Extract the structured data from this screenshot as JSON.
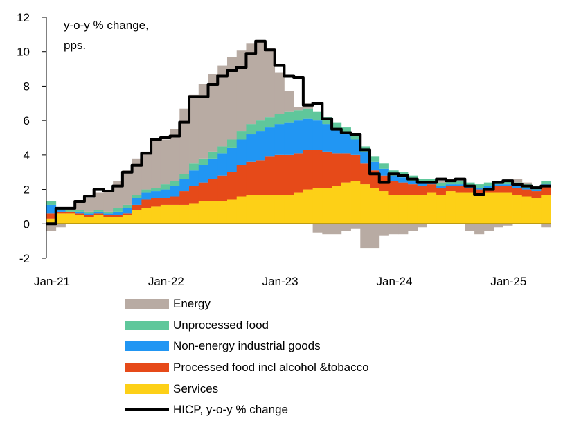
{
  "chart_data": {
    "type": "bar",
    "stacked": true,
    "title": "",
    "annotation": [
      "y-o-y % change,",
      "pps."
    ],
    "ylim": [
      -2,
      12
    ],
    "yticks": [
      -2,
      0,
      2,
      4,
      6,
      8,
      10,
      12
    ],
    "x_tick_labels": [
      {
        "index": 0,
        "label": "Jan-21"
      },
      {
        "index": 12,
        "label": "Jan-22"
      },
      {
        "index": 24,
        "label": "Jan-23"
      },
      {
        "index": 36,
        "label": "Jan-24"
      },
      {
        "index": 48,
        "label": "Jan-25"
      }
    ],
    "n_periods": 53,
    "colors": {
      "services": "#fdd017",
      "processed_food": "#e64a19",
      "neig": "#2196f3",
      "unprocessed_food": "#5fc79b",
      "energy": "#b8aba3",
      "hicp": "#000000"
    },
    "series": [
      {
        "key": "services",
        "name": "Services",
        "values": [
          0.3,
          0.6,
          0.6,
          0.5,
          0.4,
          0.5,
          0.4,
          0.4,
          0.5,
          0.8,
          0.9,
          1.0,
          1.1,
          1.1,
          1.1,
          1.2,
          1.3,
          1.3,
          1.3,
          1.4,
          1.6,
          1.7,
          1.7,
          1.7,
          1.7,
          1.7,
          1.8,
          2.0,
          2.1,
          2.1,
          2.2,
          2.4,
          2.5,
          2.3,
          2.1,
          1.9,
          1.7,
          1.7,
          1.7,
          1.7,
          1.8,
          1.7,
          1.9,
          1.8,
          1.8,
          1.7,
          1.8,
          1.8,
          1.8,
          1.7,
          1.6,
          1.5,
          1.7
        ]
      },
      {
        "key": "processed_food",
        "name": "Processed food incl alcohol &tobacco",
        "values": [
          0.3,
          0.1,
          0.1,
          0.1,
          0.1,
          0.1,
          0.1,
          0.1,
          0.1,
          0.3,
          0.5,
          0.5,
          0.4,
          0.5,
          0.8,
          1.0,
          1.1,
          1.3,
          1.5,
          1.6,
          1.8,
          1.9,
          2.0,
          2.2,
          2.3,
          2.3,
          2.3,
          2.3,
          2.2,
          2.1,
          1.9,
          1.7,
          1.5,
          1.2,
          1.0,
          0.9,
          0.8,
          0.7,
          0.6,
          0.5,
          0.5,
          0.4,
          0.3,
          0.4,
          0.3,
          0.3,
          0.3,
          0.4,
          0.4,
          0.4,
          0.4,
          0.4,
          0.5
        ]
      },
      {
        "key": "neig",
        "name": "Non-energy industrial goods",
        "values": [
          0.5,
          0.1,
          0.0,
          0.1,
          0.1,
          0.1,
          0.1,
          0.2,
          0.3,
          0.4,
          0.4,
          0.4,
          0.5,
          0.6,
          0.7,
          0.9,
          1.0,
          1.2,
          1.3,
          1.4,
          1.5,
          1.6,
          1.7,
          1.7,
          1.8,
          1.9,
          1.9,
          1.8,
          1.7,
          1.6,
          1.4,
          1.1,
          0.9,
          0.7,
          0.5,
          0.4,
          0.3,
          0.3,
          0.2,
          0.2,
          0.1,
          0.1,
          0.1,
          0.1,
          0.1,
          0.1,
          0.1,
          0.1,
          0.1,
          0.1,
          0.1,
          0.1,
          0.1
        ]
      },
      {
        "key": "unprocessed_food",
        "name": "Unprocessed food",
        "values": [
          0.2,
          0.1,
          0.1,
          0.1,
          0.1,
          0.1,
          0.1,
          0.2,
          0.2,
          0.2,
          0.2,
          0.2,
          0.3,
          0.3,
          0.3,
          0.4,
          0.4,
          0.4,
          0.4,
          0.5,
          0.5,
          0.6,
          0.6,
          0.6,
          0.6,
          0.6,
          0.6,
          0.6,
          0.5,
          0.4,
          0.4,
          0.4,
          0.3,
          0.3,
          0.3,
          0.3,
          0.3,
          0.3,
          0.3,
          0.2,
          0.2,
          0.2,
          0.2,
          0.2,
          0.2,
          0.2,
          0.2,
          0.2,
          0.2,
          0.2,
          0.2,
          0.2,
          0.2
        ]
      },
      {
        "key": "energy",
        "name": "Energy",
        "values": [
          -0.4,
          -0.2,
          0.1,
          0.5,
          0.8,
          1.0,
          1.2,
          1.6,
          2.0,
          2.1,
          2.2,
          2.7,
          2.6,
          3.0,
          3.8,
          4.0,
          4.3,
          4.5,
          4.7,
          4.8,
          4.7,
          4.7,
          4.6,
          4.0,
          2.4,
          1.2,
          0.2,
          0.3,
          -0.5,
          -0.6,
          -0.6,
          -0.4,
          -0.3,
          -1.4,
          -1.4,
          -0.7,
          -0.6,
          -0.6,
          -0.4,
          -0.2,
          0.0,
          0.1,
          0.1,
          0.0,
          -0.4,
          -0.6,
          -0.4,
          -0.2,
          -0.1,
          0.2,
          0.1,
          0.0,
          -0.2
        ]
      },
      {
        "key": "hicp",
        "name": "HICP, y-o-y % change",
        "type": "line",
        "values": [
          0.0,
          0.9,
          0.9,
          1.3,
          1.6,
          2.0,
          1.9,
          2.2,
          3.0,
          3.4,
          4.1,
          4.9,
          5.0,
          5.1,
          5.9,
          7.4,
          7.4,
          8.1,
          8.6,
          8.9,
          9.1,
          9.9,
          10.6,
          10.1,
          9.2,
          8.6,
          8.5,
          6.9,
          7.0,
          6.1,
          5.5,
          5.3,
          5.2,
          4.3,
          2.9,
          2.4,
          2.9,
          2.8,
          2.6,
          2.4,
          2.4,
          2.6,
          2.5,
          2.6,
          2.2,
          1.7,
          2.0,
          2.4,
          2.5,
          2.3,
          2.2,
          2.1,
          2.2
        ]
      }
    ],
    "legend": [
      {
        "key": "energy",
        "label": "Energy",
        "kind": "box"
      },
      {
        "key": "unprocessed_food",
        "label": "Unprocessed food",
        "kind": "box"
      },
      {
        "key": "neig",
        "label": "Non-energy industrial goods",
        "kind": "box"
      },
      {
        "key": "processed_food",
        "label": "Processed food incl alcohol &tobacco",
        "kind": "box"
      },
      {
        "key": "services",
        "label": "Services",
        "kind": "box"
      },
      {
        "key": "hicp",
        "label": "HICP, y-o-y % change",
        "kind": "line"
      }
    ],
    "legend_placement": "bottom",
    "grid": false
  }
}
